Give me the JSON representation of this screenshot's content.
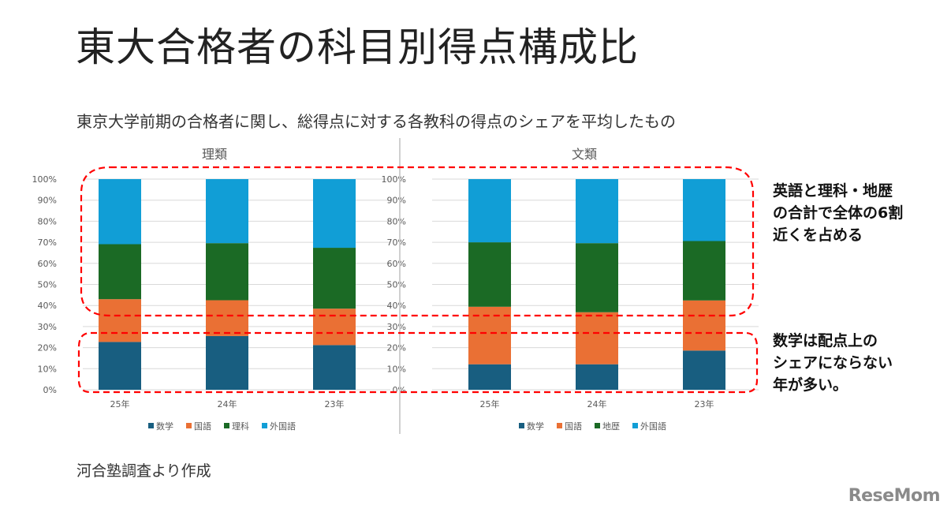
{
  "title": "東大合格者の科目別得点構成比",
  "subtitle": "東京大学前期の合格者に関し、総得点に対する各教科の得点のシェアを平均したもの",
  "source": "河合塾調査より作成",
  "notes": [
    [
      "英語と理科・地歴",
      "の合計で全体の6割",
      "近くを占める"
    ],
    [
      "数学は配点上の",
      "シェアにならない",
      "年が多い。"
    ]
  ],
  "logo": "ReseMom",
  "colors": {
    "数学": "#185e80",
    "国語": "#ea7034",
    "理科": "#1b6a25",
    "地歴": "#1b6a25",
    "外国語": "#119ed6",
    "highlight": "#ff0000"
  },
  "chart_data": [
    {
      "type": "bar",
      "stacked": true,
      "percent": true,
      "title": "理類",
      "categories": [
        "25年",
        "24年",
        "23年"
      ],
      "y_ticks": [
        "0%",
        "10%",
        "20%",
        "30%",
        "40%",
        "50%",
        "60%",
        "70%",
        "80%",
        "90%",
        "100%"
      ],
      "ylim": [
        0,
        100
      ],
      "grid": true,
      "legend": "bottom",
      "series": [
        {
          "name": "数学",
          "values": [
            22.7,
            25.5,
            21.2
          ]
        },
        {
          "name": "国語",
          "values": [
            20.3,
            17.0,
            17.3
          ]
        },
        {
          "name": "理科",
          "values": [
            26.1,
            27.1,
            28.9
          ]
        },
        {
          "name": "外国語",
          "values": [
            30.9,
            30.4,
            32.6
          ]
        }
      ]
    },
    {
      "type": "bar",
      "stacked": true,
      "percent": true,
      "title": "文類",
      "categories": [
        "25年",
        "24年",
        "23年"
      ],
      "y_ticks": [
        "0%",
        "10%",
        "20%",
        "30%",
        "40%",
        "50%",
        "60%",
        "70%",
        "80%",
        "90%",
        "100%"
      ],
      "ylim": [
        0,
        100
      ],
      "grid": true,
      "legend": "bottom",
      "series": [
        {
          "name": "数学",
          "values": [
            12.1,
            12.1,
            18.6
          ]
        },
        {
          "name": "国語",
          "values": [
            27.3,
            24.7,
            23.8
          ]
        },
        {
          "name": "地歴",
          "values": [
            30.6,
            32.8,
            28.2
          ]
        },
        {
          "name": "外国語",
          "values": [
            30.0,
            30.4,
            29.4
          ]
        }
      ]
    }
  ]
}
